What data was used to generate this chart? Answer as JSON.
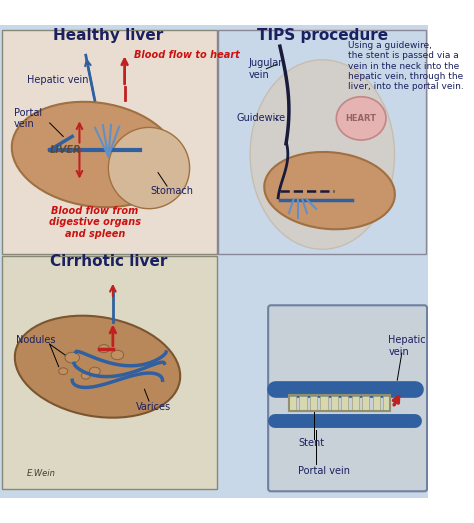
{
  "title_healthy": "Healthy liver",
  "title_cirrhotic": "Cirrhotic liver",
  "title_tips": "TIPS procedure",
  "tips_description": "Using a guidewire,\nthe stent is passed via a\nvein in the neck into the\nhepatic vein, through the\nliver, into the portal vein.",
  "bg_color_top": "#c8d8e8",
  "bg_color_bottom": "#b8ccd8",
  "panel_healthy_bg": "#e8e0d0",
  "panel_cirrhotic_bg": "#ddd8c8",
  "liver_color": "#c8956a",
  "liver_dark": "#a07040",
  "vein_blue": "#3060a0",
  "vein_light": "#6090c8",
  "blood_red": "#c02020",
  "heart_color": "#e8b0b0",
  "stent_color": "#d0d0b0",
  "text_dark": "#1a2060",
  "text_red": "#cc1010",
  "label_healthy_hepatic": "Hepatic vein",
  "label_healthy_portal": "Portal\nvein",
  "label_healthy_stomach": "Stomach",
  "label_healthy_liver": "LIVER",
  "label_blood_heart": "Blood flow to heart",
  "label_blood_digest": "Blood flow from\ndigestive organs\nand spleen",
  "label_cirrhotic_nodules": "Nodules",
  "label_cirrhotic_varices": "Varices",
  "label_tips_jugular": "Jugular\nvein",
  "label_tips_guidewire": "Guidewire",
  "label_tips_heart": "HEART",
  "label_tips_stent": "Stent",
  "label_tips_hepatic": "Hepatic\nvein",
  "label_tips_portal": "Portal vein",
  "figsize": [
    4.74,
    5.23
  ],
  "dpi": 100
}
